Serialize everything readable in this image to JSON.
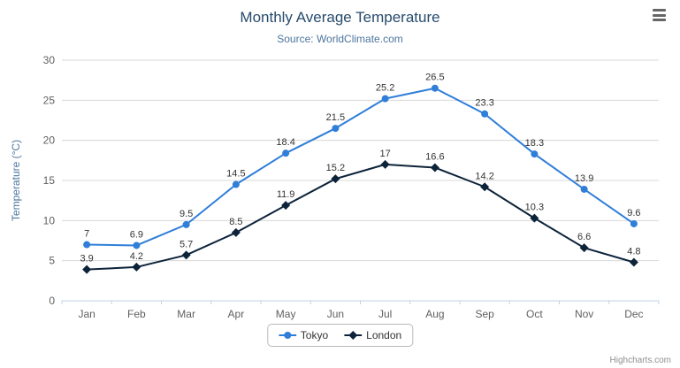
{
  "chart_data": {
    "type": "line",
    "title": "Monthly Average Temperature",
    "subtitle": "Source: WorldClimate.com",
    "categories": [
      "Jan",
      "Feb",
      "Mar",
      "Apr",
      "May",
      "Jun",
      "Jul",
      "Aug",
      "Sep",
      "Oct",
      "Nov",
      "Dec"
    ],
    "xlabel": "",
    "ylabel": "Temperature (°C)",
    "ylim": [
      0,
      30
    ],
    "ytick_interval": 5,
    "grid": true,
    "legend_position": "bottom",
    "series": [
      {
        "name": "Tokyo",
        "color": "#2f7ed8",
        "marker": "circle",
        "values": [
          7,
          6.9,
          9.5,
          14.5,
          18.4,
          21.5,
          25.2,
          26.5,
          23.3,
          18.3,
          13.9,
          9.6
        ]
      },
      {
        "name": "London",
        "color": "#0d233a",
        "marker": "diamond",
        "values": [
          3.9,
          4.2,
          5.7,
          8.5,
          11.9,
          15.2,
          17,
          16.6,
          14.2,
          10.3,
          6.6,
          4.8
        ]
      }
    ]
  },
  "credits": "Highcharts.com"
}
